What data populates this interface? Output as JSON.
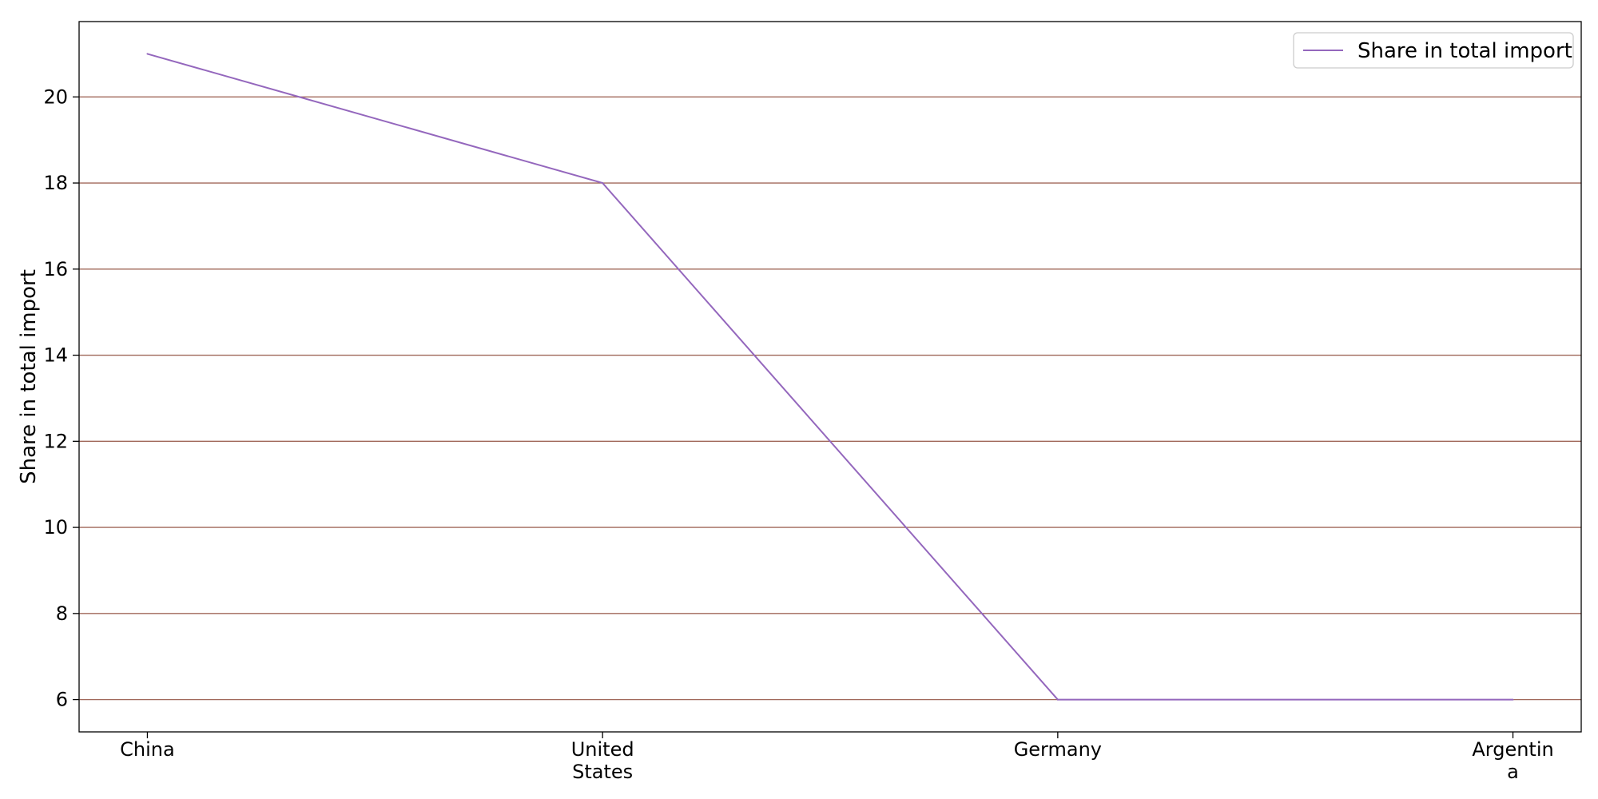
{
  "chart_data": {
    "type": "line",
    "categories": [
      "China",
      "United States",
      "Germany",
      "Argentina"
    ],
    "category_tick_lines": [
      [
        "China"
      ],
      [
        "United",
        "States"
      ],
      [
        "Germany"
      ],
      [
        "Argentin",
        "a"
      ]
    ],
    "series": [
      {
        "name": "Share in total import",
        "values": [
          21,
          18,
          6,
          6
        ]
      }
    ],
    "xlabel": "",
    "ylabel": "Share in total import",
    "ylim": [
      5.25,
      21.75
    ],
    "yticks": [
      6,
      8,
      10,
      12,
      14,
      16,
      18,
      20
    ],
    "grid": {
      "y": true,
      "x": false
    },
    "legend": {
      "position": "top-right"
    },
    "colors": {
      "line": "#9467bd",
      "grid": "#a0685a",
      "axes": "#000000"
    }
  }
}
